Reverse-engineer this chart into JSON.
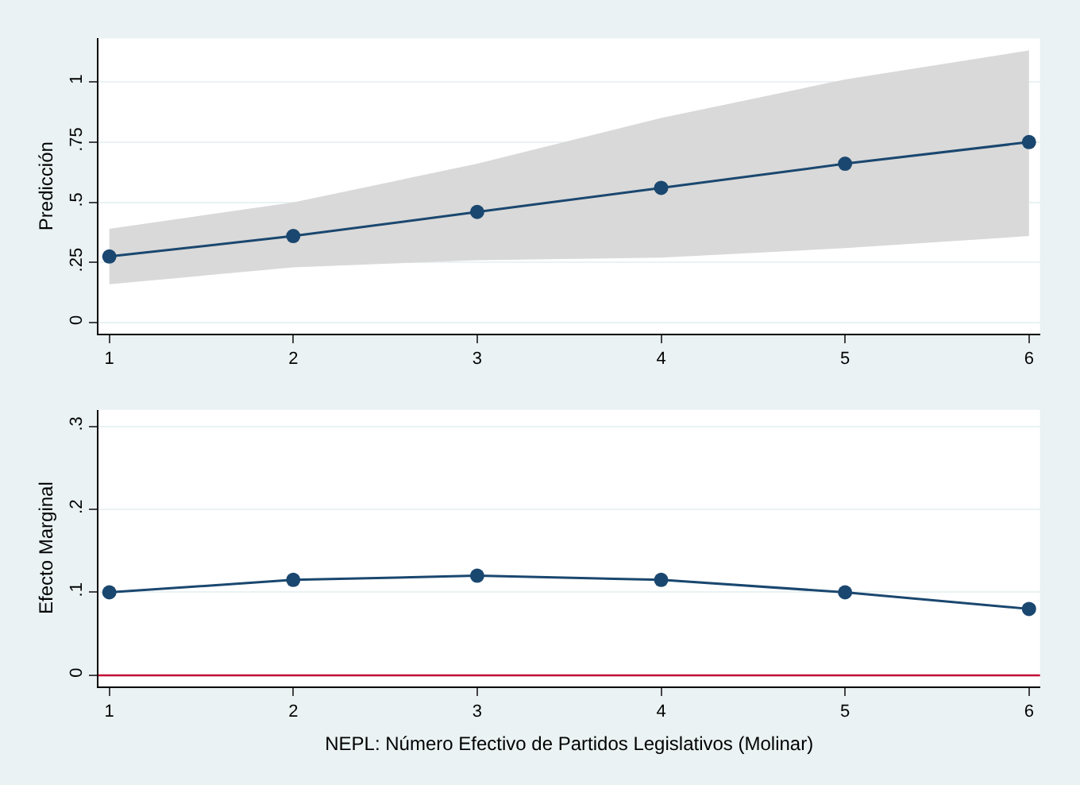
{
  "chart_data": [
    {
      "type": "line",
      "ylabel": "Predicción",
      "x": [
        1,
        2,
        3,
        4,
        5,
        6
      ],
      "series": [
        {
          "color": "#1a476f",
          "values": [
            0.275,
            0.36,
            0.46,
            0.56,
            0.66,
            0.75
          ],
          "lower": [
            0.16,
            0.23,
            0.26,
            0.27,
            0.31,
            0.36
          ],
          "upper": [
            0.39,
            0.5,
            0.66,
            0.85,
            1.01,
            1.13
          ]
        }
      ],
      "xlim": [
        0.94,
        6.06
      ],
      "xticks": [
        1,
        2,
        3,
        4,
        5,
        6
      ],
      "ylim": [
        -0.045,
        1.18
      ],
      "yticks": [
        0,
        {
          "value": 0.25,
          "label": ".25"
        },
        {
          "value": 0.5,
          "label": ".5"
        },
        {
          "value": 0.75,
          "label": ".75"
        },
        1
      ],
      "grid": "y",
      "marker": "circle",
      "line_style": "solid"
    },
    {
      "type": "line",
      "ylabel": "Efecto Marginal",
      "xlabel": "NEPL: Número Efectivo de Partidos Legislativos (Molinar)",
      "x": [
        1,
        2,
        3,
        4,
        5,
        6
      ],
      "series": [
        {
          "color": "#1a476f",
          "values": [
            0.1,
            0.115,
            0.12,
            0.115,
            0.1,
            0.08
          ]
        }
      ],
      "xlim": [
        0.94,
        6.06
      ],
      "xticks": [
        1,
        2,
        3,
        4,
        5,
        6
      ],
      "ylim": [
        -0.013,
        0.32
      ],
      "yticks": [
        0,
        {
          "value": 0.1,
          "label": ".1"
        },
        {
          "value": 0.2,
          "label": ".2"
        },
        {
          "value": 0.3,
          "label": ".3"
        }
      ],
      "ref_lines": [
        {
          "axis": "y",
          "value": 0,
          "color": "#c10534"
        }
      ],
      "grid": "y",
      "marker": "circle",
      "line_style": "solid"
    }
  ]
}
